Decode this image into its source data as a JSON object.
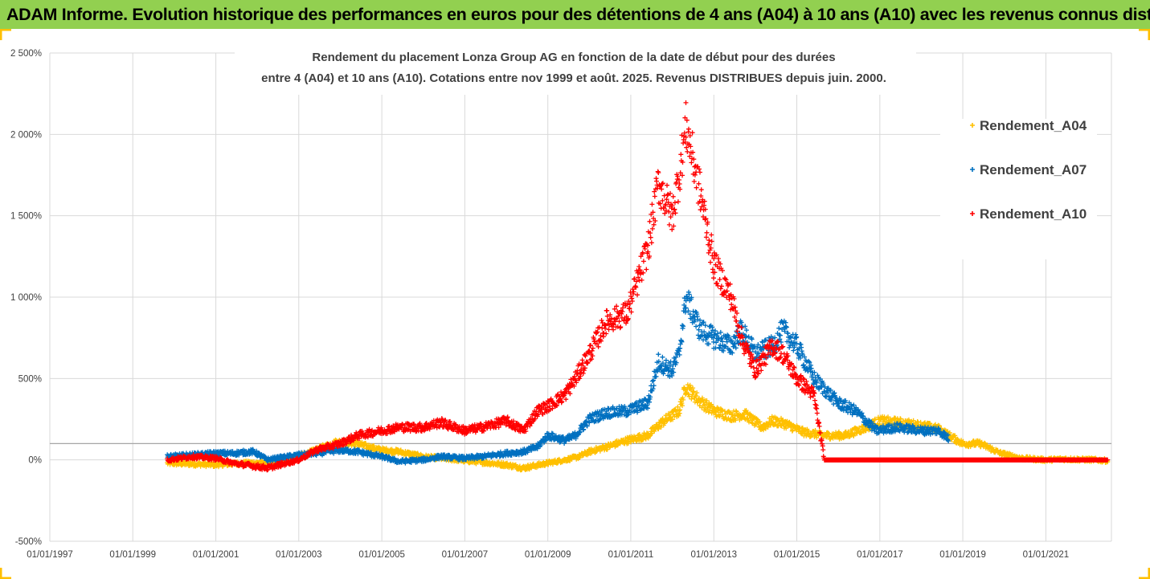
{
  "banner": {
    "text": "ADAM Informe. Evolution historique des performances en euros pour des détentions de 4 ans (A04) à 10 ans (A10) avec les revenus connus distribués",
    "background": "#92d050"
  },
  "chart_data": {
    "type": "scatter",
    "title_line1": "Rendement du placement Lonza Group AG en fonction de la date de début pour des durées",
    "title_line2": "entre 4 (A04) et 10 ans (A10). Cotations entre nov 1999 et août. 2025. Revenus DISTRIBUES depuis juin. 2000.",
    "xlim": [
      "1997-01-01",
      "2022-08-01"
    ],
    "ylim": [
      -500,
      2500
    ],
    "y_ticks": [
      {
        "value": 2500,
        "label": "2 500%"
      },
      {
        "value": 2000,
        "label": "2 000%"
      },
      {
        "value": 1500,
        "label": "1 500%"
      },
      {
        "value": 1000,
        "label": "1 000%"
      },
      {
        "value": 500,
        "label": "500%"
      },
      {
        "value": 0,
        "label": "0%"
      },
      {
        "value": -500,
        "label": "-500%"
      }
    ],
    "x_ticks": [
      {
        "value": "1997-01-01",
        "label": "01/01/1997"
      },
      {
        "value": "1999-01-01",
        "label": "01/01/1999"
      },
      {
        "value": "2001-01-01",
        "label": "01/01/2001"
      },
      {
        "value": "2003-01-01",
        "label": "01/01/2003"
      },
      {
        "value": "2005-01-01",
        "label": "01/01/2005"
      },
      {
        "value": "2007-01-01",
        "label": "01/01/2007"
      },
      {
        "value": "2009-01-01",
        "label": "01/01/2009"
      },
      {
        "value": "2011-01-01",
        "label": "01/01/2011"
      },
      {
        "value": "2013-01-01",
        "label": "01/01/2013"
      },
      {
        "value": "2015-01-01",
        "label": "01/01/2015"
      },
      {
        "value": "2017-01-01",
        "label": "01/01/2017"
      },
      {
        "value": "2019-01-01",
        "label": "01/01/2019"
      },
      {
        "value": "2021-01-01",
        "label": "01/01/2021"
      }
    ],
    "reference_line": 100,
    "grid": true,
    "legend_position": "right",
    "series": [
      {
        "name": "Rendement_A04",
        "color": "#ffc000",
        "points": [
          [
            "1999-11-01",
            -20
          ],
          [
            "2000-06-01",
            -25
          ],
          [
            "2001-01-01",
            -30
          ],
          [
            "2001-09-01",
            -20
          ],
          [
            "2002-06-01",
            -15
          ],
          [
            "2003-01-01",
            20
          ],
          [
            "2003-06-01",
            60
          ],
          [
            "2003-12-01",
            110
          ],
          [
            "2004-06-01",
            100
          ],
          [
            "2004-09-01",
            80
          ],
          [
            "2005-01-01",
            60
          ],
          [
            "2005-06-01",
            50
          ],
          [
            "2006-01-01",
            20
          ],
          [
            "2006-06-01",
            10
          ],
          [
            "2007-01-01",
            -5
          ],
          [
            "2007-06-01",
            -15
          ],
          [
            "2008-01-01",
            -30
          ],
          [
            "2008-06-01",
            -50
          ],
          [
            "2009-01-01",
            -20
          ],
          [
            "2009-06-01",
            0
          ],
          [
            "2009-10-01",
            20
          ],
          [
            "2010-01-01",
            50
          ],
          [
            "2010-06-01",
            80
          ],
          [
            "2010-12-01",
            120
          ],
          [
            "2011-06-01",
            150
          ],
          [
            "2011-10-01",
            230
          ],
          [
            "2012-03-01",
            300
          ],
          [
            "2012-05-01",
            450
          ],
          [
            "2012-09-01",
            360
          ],
          [
            "2013-01-01",
            300
          ],
          [
            "2013-06-01",
            270
          ],
          [
            "2013-10-01",
            280
          ],
          [
            "2014-03-01",
            200
          ],
          [
            "2014-06-01",
            240
          ],
          [
            "2014-10-01",
            220
          ],
          [
            "2015-03-01",
            170
          ],
          [
            "2015-09-01",
            150
          ],
          [
            "2016-03-01",
            150
          ],
          [
            "2016-09-01",
            200
          ],
          [
            "2017-01-01",
            240
          ],
          [
            "2017-06-01",
            230
          ],
          [
            "2018-01-01",
            210
          ],
          [
            "2018-06-01",
            190
          ],
          [
            "2018-09-01",
            150
          ],
          [
            "2019-01-01",
            100
          ],
          [
            "2019-06-01",
            100
          ],
          [
            "2019-12-01",
            40
          ],
          [
            "2020-06-01",
            10
          ],
          [
            "2021-01-01",
            0
          ],
          [
            "2021-06-01",
            5
          ],
          [
            "2022-03-01",
            0
          ],
          [
            "2022-07-01",
            -5
          ]
        ]
      },
      {
        "name": "Rendement_A07",
        "color": "#0070c0",
        "points": [
          [
            "1999-11-01",
            20
          ],
          [
            "2000-06-01",
            30
          ],
          [
            "2001-01-01",
            40
          ],
          [
            "2001-06-01",
            40
          ],
          [
            "2001-12-01",
            50
          ],
          [
            "2002-04-01",
            0
          ],
          [
            "2003-01-01",
            30
          ],
          [
            "2003-06-01",
            40
          ],
          [
            "2004-01-01",
            60
          ],
          [
            "2004-06-01",
            50
          ],
          [
            "2005-01-01",
            20
          ],
          [
            "2005-06-01",
            -10
          ],
          [
            "2006-01-01",
            0
          ],
          [
            "2006-06-01",
            20
          ],
          [
            "2007-01-01",
            10
          ],
          [
            "2007-06-01",
            20
          ],
          [
            "2008-01-01",
            40
          ],
          [
            "2008-06-01",
            50
          ],
          [
            "2008-10-01",
            80
          ],
          [
            "2009-01-01",
            150
          ],
          [
            "2009-06-01",
            120
          ],
          [
            "2009-09-01",
            150
          ],
          [
            "2010-01-01",
            250
          ],
          [
            "2010-06-01",
            290
          ],
          [
            "2010-12-01",
            300
          ],
          [
            "2011-06-01",
            350
          ],
          [
            "2011-09-01",
            600
          ],
          [
            "2012-01-01",
            550
          ],
          [
            "2012-03-01",
            650
          ],
          [
            "2012-05-01",
            1000
          ],
          [
            "2012-09-01",
            800
          ],
          [
            "2013-01-01",
            750
          ],
          [
            "2013-06-01",
            700
          ],
          [
            "2013-09-01",
            800
          ],
          [
            "2014-01-01",
            650
          ],
          [
            "2014-06-01",
            700
          ],
          [
            "2014-09-01",
            800
          ],
          [
            "2015-01-01",
            700
          ],
          [
            "2015-06-01",
            500
          ],
          [
            "2016-01-01",
            350
          ],
          [
            "2016-06-01",
            300
          ],
          [
            "2016-12-01",
            180
          ],
          [
            "2017-06-01",
            200
          ],
          [
            "2018-01-01",
            180
          ],
          [
            "2018-06-01",
            180
          ],
          [
            "2018-09-01",
            130
          ]
        ]
      },
      {
        "name": "Rendement_A10",
        "color": "#ff0000",
        "points": [
          [
            "1999-11-01",
            0
          ],
          [
            "2000-06-01",
            20
          ],
          [
            "2001-01-01",
            10
          ],
          [
            "2001-06-01",
            -20
          ],
          [
            "2002-04-01",
            -50
          ],
          [
            "2003-01-01",
            0
          ],
          [
            "2003-06-01",
            60
          ],
          [
            "2004-01-01",
            100
          ],
          [
            "2004-06-01",
            150
          ],
          [
            "2005-01-01",
            180
          ],
          [
            "2005-06-01",
            200
          ],
          [
            "2006-01-01",
            200
          ],
          [
            "2006-06-01",
            230
          ],
          [
            "2007-01-01",
            180
          ],
          [
            "2007-06-01",
            200
          ],
          [
            "2008-01-01",
            240
          ],
          [
            "2008-06-01",
            180
          ],
          [
            "2008-10-01",
            300
          ],
          [
            "2009-01-01",
            330
          ],
          [
            "2009-06-01",
            400
          ],
          [
            "2009-09-01",
            500
          ],
          [
            "2010-01-01",
            650
          ],
          [
            "2010-06-01",
            850
          ],
          [
            "2010-12-01",
            900
          ],
          [
            "2011-06-01",
            1300
          ],
          [
            "2011-09-01",
            1700
          ],
          [
            "2012-01-01",
            1500
          ],
          [
            "2012-03-01",
            1750
          ],
          [
            "2012-05-01",
            2050
          ],
          [
            "2012-09-01",
            1650
          ],
          [
            "2013-01-01",
            1200
          ],
          [
            "2013-06-01",
            1000
          ],
          [
            "2013-09-01",
            750
          ],
          [
            "2014-01-01",
            550
          ],
          [
            "2014-06-01",
            700
          ],
          [
            "2014-09-01",
            650
          ],
          [
            "2015-01-01",
            500
          ],
          [
            "2015-06-01",
            400
          ],
          [
            "2015-09-01",
            0
          ],
          [
            "2022-07-01",
            0
          ]
        ]
      }
    ]
  }
}
